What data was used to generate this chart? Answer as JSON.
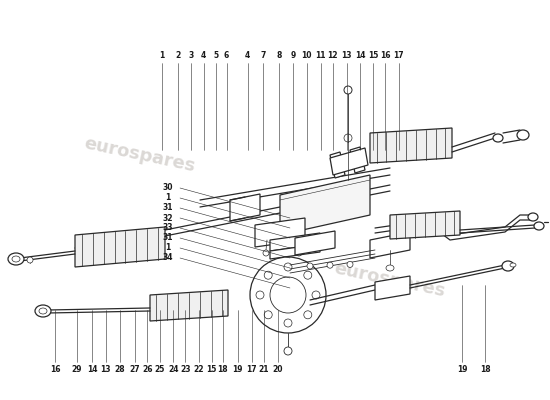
{
  "bg_color": "#ffffff",
  "watermark_color": "#ccc8c4",
  "line_color": "#2a2a2a",
  "label_color": "#1a1a1a",
  "top_labels": [
    [
      "1",
      0.295
    ],
    [
      "2",
      0.323
    ],
    [
      "3",
      0.348
    ],
    [
      "4",
      0.37
    ],
    [
      "5",
      0.392
    ],
    [
      "6",
      0.412
    ],
    [
      "4",
      0.45
    ],
    [
      "7",
      0.478
    ],
    [
      "8",
      0.508
    ],
    [
      "9",
      0.533
    ],
    [
      "10",
      0.558
    ],
    [
      "11",
      0.583
    ],
    [
      "12",
      0.605
    ],
    [
      "13",
      0.63
    ],
    [
      "14",
      0.655
    ],
    [
      "15",
      0.678
    ],
    [
      "16",
      0.7
    ],
    [
      "17",
      0.725
    ]
  ],
  "left_labels": [
    [
      "34",
      0.645
    ],
    [
      "1",
      0.62
    ],
    [
      "31",
      0.595
    ],
    [
      "33",
      0.57
    ],
    [
      "32",
      0.545
    ],
    [
      "31",
      0.52
    ],
    [
      "1",
      0.495
    ],
    [
      "30",
      0.47
    ]
  ],
  "bottom_labels": [
    [
      "16",
      0.1
    ],
    [
      "29",
      0.14
    ],
    [
      "14",
      0.168
    ],
    [
      "13",
      0.192
    ],
    [
      "28",
      0.218
    ],
    [
      "27",
      0.245
    ],
    [
      "26",
      0.268
    ],
    [
      "25",
      0.29
    ],
    [
      "24",
      0.315
    ],
    [
      "23",
      0.337
    ],
    [
      "22",
      0.362
    ],
    [
      "15",
      0.385
    ],
    [
      "18",
      0.405
    ],
    [
      "19",
      0.432
    ],
    [
      "17",
      0.458
    ],
    [
      "21",
      0.48
    ],
    [
      "20",
      0.505
    ]
  ],
  "bottom_right_labels": [
    [
      "19",
      0.84
    ],
    [
      "18",
      0.882
    ]
  ]
}
